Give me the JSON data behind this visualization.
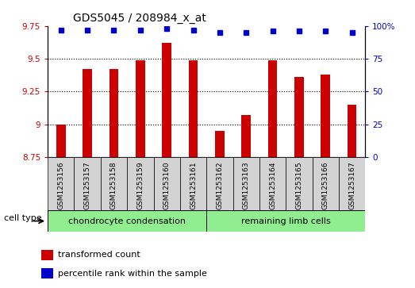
{
  "title": "GDS5045 / 208984_x_at",
  "samples": [
    "GSM1253156",
    "GSM1253157",
    "GSM1253158",
    "GSM1253159",
    "GSM1253160",
    "GSM1253161",
    "GSM1253162",
    "GSM1253163",
    "GSM1253164",
    "GSM1253165",
    "GSM1253166",
    "GSM1253167"
  ],
  "transformed_count": [
    9.0,
    9.42,
    9.42,
    9.49,
    9.62,
    9.49,
    8.95,
    9.07,
    9.49,
    9.36,
    9.38,
    9.15
  ],
  "percentile_rank": [
    97,
    97,
    97,
    97,
    98,
    97,
    95,
    95,
    96,
    96,
    96,
    95
  ],
  "ylim_left": [
    8.75,
    9.75
  ],
  "ylim_right": [
    0,
    100
  ],
  "yticks_left": [
    8.75,
    9.0,
    9.25,
    9.5,
    9.75
  ],
  "yticks_right": [
    0,
    25,
    50,
    75,
    100
  ],
  "ytick_labels_left": [
    "8.75",
    "9",
    "9.25",
    "9.5",
    "9.75"
  ],
  "ytick_labels_right": [
    "0",
    "25",
    "50",
    "75",
    "100%"
  ],
  "cell_type_groups": [
    {
      "label": "chondrocyte condensation",
      "start": 0,
      "end": 6,
      "color": "#90EE90"
    },
    {
      "label": "remaining limb cells",
      "start": 6,
      "end": 12,
      "color": "#90EE90"
    }
  ],
  "cell_type_label": "cell type",
  "bar_color": "#CC0000",
  "dot_color": "#0000CC",
  "grid_color": "#000000",
  "background_color": "#ffffff",
  "sample_box_color": "#D3D3D3",
  "legend_items": [
    {
      "color": "#CC0000",
      "label": "transformed count"
    },
    {
      "color": "#0000CC",
      "label": "percentile rank within the sample"
    }
  ]
}
